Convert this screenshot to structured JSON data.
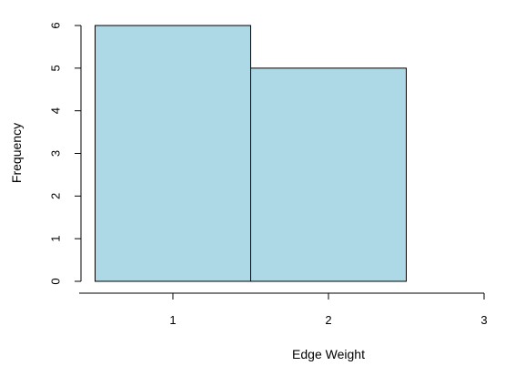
{
  "chart_data": {
    "type": "bar",
    "title": "",
    "xlabel": "Edge Weight",
    "ylabel": "Frequency",
    "bins": [
      {
        "x0": 0.5,
        "x1": 1.5,
        "value": 6
      },
      {
        "x0": 1.5,
        "x1": 2.5,
        "value": 5
      }
    ],
    "xlim": [
      0.5,
      3
    ],
    "ylim": [
      0,
      6
    ],
    "x_ticks": [
      1,
      2,
      3
    ],
    "y_ticks": [
      0,
      1,
      2,
      3,
      4,
      5,
      6
    ],
    "bar_fill": "#add8e6",
    "bar_stroke": "#000000",
    "grid": false,
    "legend": "none"
  }
}
